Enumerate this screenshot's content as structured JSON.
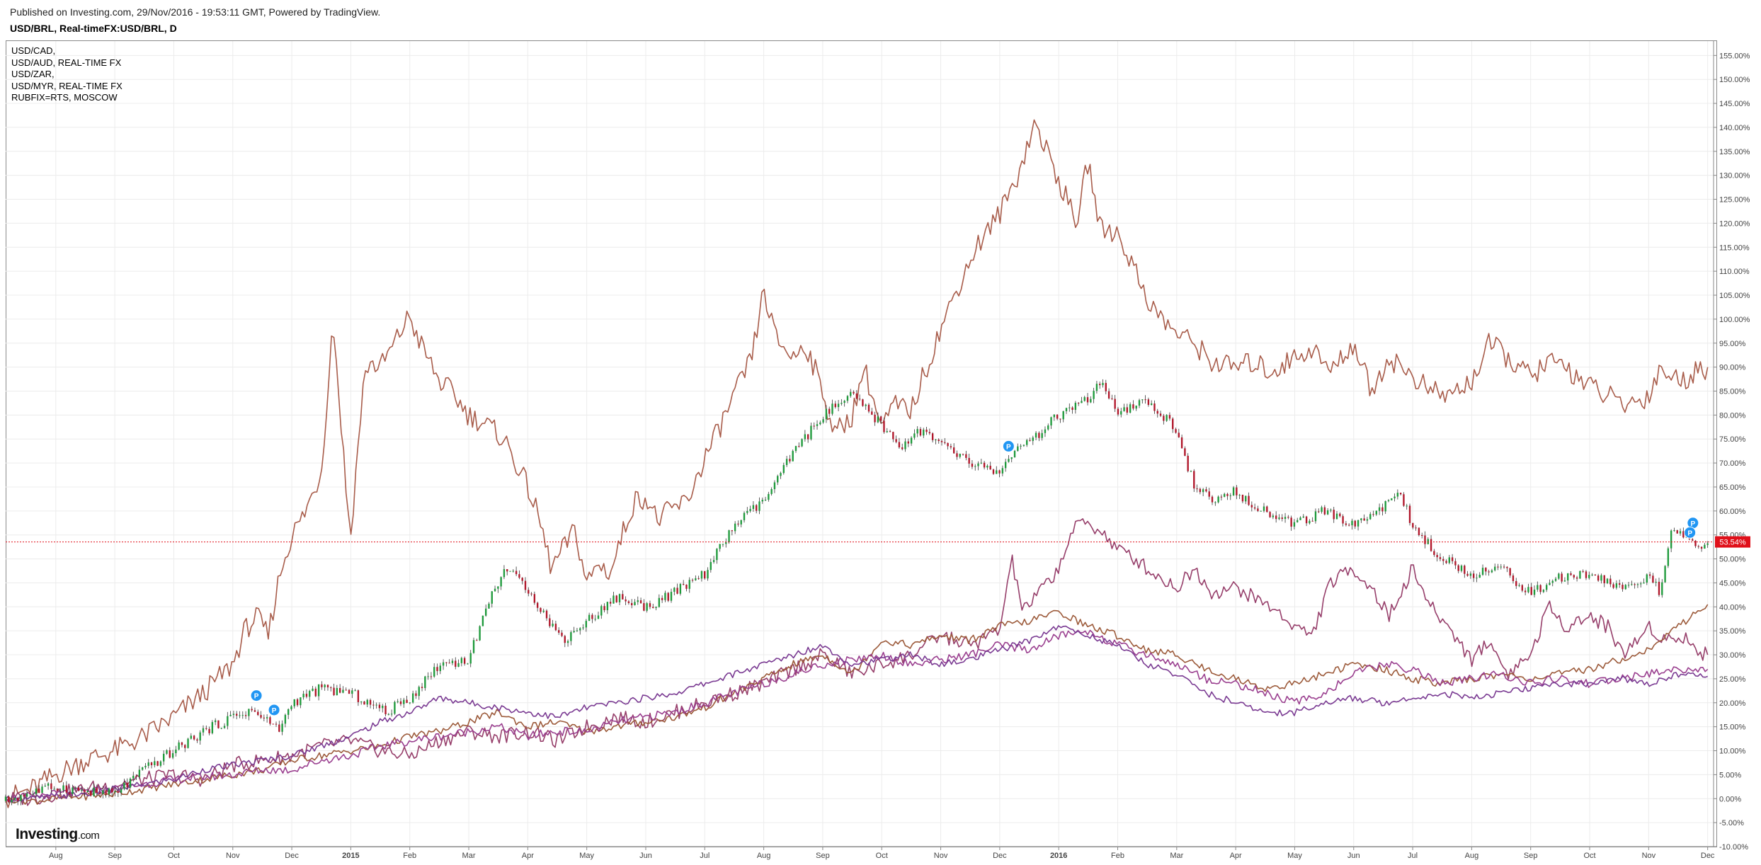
{
  "header": {
    "published": "Published on Investing.com, 29/Nov/2016 - 19:53:11 GMT, Powered by TradingView.",
    "symbol_title": "USD/BRL, Real-timeFX:USD/BRL, D"
  },
  "legend": [
    "USD/CAD,",
    "USD/AUD, REAL-TIME FX",
    "USD/ZAR,",
    "USD/MYR, REAL-TIME FX",
    "RUBFIX=RTS, MOSCOW"
  ],
  "logo": {
    "main": "Investing",
    "suffix": ".com"
  },
  "chart_data": {
    "type": "line",
    "title": "USD/BRL, Real-timeFX:USD/BRL, D",
    "y_unit": "%",
    "ylim": [
      -10,
      158
    ],
    "y_ticks": [
      155,
      150,
      145,
      140,
      135,
      130,
      125,
      120,
      115,
      110,
      105,
      100,
      95,
      90,
      85,
      80,
      75,
      70,
      65,
      60,
      55,
      50,
      45,
      40,
      35,
      30,
      25,
      20,
      15,
      10,
      5,
      0,
      -5,
      -10
    ],
    "y_tick_labels": [
      "155.00%",
      "150.00%",
      "145.00%",
      "140.00%",
      "135.00%",
      "130.00%",
      "125.00%",
      "120.00%",
      "115.00%",
      "110.00%",
      "105.00%",
      "100.00%",
      "95.00%",
      "90.00%",
      "85.00%",
      "80.00%",
      "75.00%",
      "70.00%",
      "65.00%",
      "60.00%",
      "55.00%",
      "50.00%",
      "45.00%",
      "40.00%",
      "35.00%",
      "30.00%",
      "25.00%",
      "20.00%",
      "15.00%",
      "10.00%",
      "5.00%",
      "0.00%",
      "-5.00%",
      "-10.00%"
    ],
    "x_tick_labels": [
      "Aug",
      "Sep",
      "Oct",
      "Nov",
      "Dec",
      "2015",
      "Feb",
      "Mar",
      "Apr",
      "May",
      "Jun",
      "Jul",
      "Aug",
      "Sep",
      "Oct",
      "Nov",
      "Dec",
      "2016",
      "Feb",
      "Mar",
      "Apr",
      "May",
      "Jun",
      "Jul",
      "Aug",
      "Sep",
      "Oct",
      "Nov",
      "Dec"
    ],
    "x_tick_months": [
      0,
      1,
      2,
      3,
      4,
      5,
      6,
      7,
      8,
      9,
      10,
      11,
      12,
      13,
      14,
      15,
      16,
      17,
      18,
      19,
      20,
      21,
      22,
      23,
      24,
      25,
      26,
      27,
      28
    ],
    "x_axis_note": "month index 0 = Aug 2014",
    "xlim": [
      -0.85,
      28.1
    ],
    "grid": true,
    "legend_position": "top-left",
    "last_value_label": "53.54%",
    "last_value": 53.54,
    "colors": {
      "candle_up": "#1f9a3c",
      "candle_down": "#b0162a",
      "rub": "#a85c4a",
      "zar": "#963e6a",
      "cad": "#9c5a3a",
      "aud": "#9a3f8f",
      "myr": "#7a3a92",
      "last_line": "#e0101a",
      "grid": "#ececec",
      "axis_text": "#444444"
    },
    "markers": [
      {
        "x": 3.4,
        "y": 21.5,
        "label": "P"
      },
      {
        "x": 3.7,
        "y": 18.5,
        "label": "P"
      },
      {
        "x": 16.15,
        "y": 73.5,
        "label": "P"
      },
      {
        "x": 27.75,
        "y": 57.5,
        "label": "P"
      },
      {
        "x": 27.7,
        "y": 55.5,
        "label": "P"
      }
    ],
    "series": [
      {
        "name": "USD/BRL",
        "style": "candles",
        "x": [
          -0.85,
          -0.5,
          0,
          0.5,
          1,
          1.5,
          2,
          2.5,
          3,
          3.3,
          3.6,
          3.8,
          4,
          4.5,
          5,
          5.3,
          5.6,
          6,
          6.5,
          7,
          7.3,
          7.6,
          8,
          8.3,
          8.6,
          9,
          9.5,
          10,
          10.5,
          11,
          11.5,
          12,
          12.5,
          13,
          13.5,
          14,
          14.3,
          14.6,
          15,
          15.5,
          16,
          16.2,
          16.5,
          17,
          17.5,
          17.7,
          18,
          18.5,
          19,
          19.3,
          19.6,
          20,
          20.5,
          21,
          21.5,
          22,
          22.5,
          22.8,
          23,
          23.2,
          23.5,
          24,
          24.5,
          25,
          25.5,
          26,
          26.5,
          27,
          27.2,
          27.4,
          27.6,
          27.8,
          28
        ],
        "values": [
          -0.5,
          1,
          2.5,
          1.5,
          1,
          6,
          10,
          14,
          17,
          18.5,
          16,
          14.5,
          20,
          23,
          22,
          20,
          18,
          21,
          28,
          29,
          40,
          48,
          44,
          38,
          33,
          37,
          42,
          40,
          43,
          47,
          57,
          62,
          72,
          80,
          84,
          78,
          73,
          77,
          74,
          70,
          68,
          72,
          74,
          80,
          83,
          87,
          80,
          83,
          77,
          65,
          62,
          64,
          60,
          57,
          60,
          57,
          61,
          64,
          56,
          54,
          50,
          47,
          48,
          43,
          46,
          47,
          44,
          46,
          43,
          56,
          55,
          52,
          53.54
        ]
      },
      {
        "name": "RUBFIX=RTS, MOSCOW",
        "style": "line",
        "x": [
          -0.85,
          -0.4,
          0,
          0.5,
          1,
          1.5,
          2,
          2.5,
          3,
          3.2,
          3.4,
          3.6,
          3.8,
          4,
          4.2,
          4.5,
          4.7,
          4.85,
          4.95,
          5,
          5.1,
          5.2,
          5.3,
          5.5,
          5.7,
          6,
          6.1,
          6.3,
          6.5,
          6.7,
          7,
          7.3,
          7.6,
          7.8,
          8,
          8.2,
          8.4,
          8.6,
          8.8,
          9,
          9.2,
          9.4,
          9.6,
          9.8,
          10,
          10.2,
          10.4,
          10.7,
          11,
          11.2,
          11.5,
          11.8,
          12,
          12.2,
          12.5,
          12.7,
          13,
          13.2,
          13.5,
          13.7,
          14,
          14.2,
          14.5,
          14.7,
          15,
          15.3,
          15.6,
          16,
          16.3,
          16.6,
          17,
          17.3,
          17.5,
          17.7,
          18,
          18.3,
          18.6,
          19,
          19.3,
          19.6,
          20,
          20.3,
          20.6,
          21,
          21.3,
          21.6,
          22,
          22.3,
          22.6,
          23,
          23.3,
          23.6,
          24,
          24.3,
          24.6,
          25,
          25.3,
          25.6,
          26,
          26.3,
          26.6,
          27,
          27.2,
          27.5,
          27.8,
          28
        ],
        "values": [
          0,
          2,
          5,
          8,
          10,
          13,
          17,
          22,
          28,
          35,
          38,
          34,
          47,
          55,
          59,
          68,
          100,
          76,
          60,
          55,
          70,
          85,
          91,
          90,
          94,
          101,
          97,
          92,
          87,
          85,
          80,
          78,
          75,
          70,
          65,
          58,
          48,
          52,
          56,
          45,
          49,
          47,
          55,
          62,
          63,
          58,
          60,
          62,
          71,
          76,
          84,
          92,
          106,
          96,
          92,
          95,
          85,
          76,
          80,
          90,
          77,
          82,
          81,
          88,
          98,
          107,
          115,
          122,
          130,
          141,
          129,
          120,
          133,
          119,
          118,
          110,
          102,
          97,
          95,
          91,
          90,
          91,
          89,
          92,
          94,
          89,
          95,
          85,
          92,
          88,
          85,
          84,
          87,
          95,
          92,
          88,
          91,
          90,
          86,
          84,
          82,
          84,
          90,
          87,
          89,
          90
        ]
      },
      {
        "name": "USD/ZAR,",
        "style": "line",
        "x": [
          -0.85,
          -0.4,
          0,
          0.5,
          1,
          1.5,
          2,
          2.5,
          3,
          3.5,
          4,
          4.5,
          5,
          5.5,
          6,
          6.5,
          7,
          7.5,
          8,
          8.5,
          9,
          9.5,
          10,
          10.5,
          11,
          11.5,
          12,
          12.5,
          13,
          13.5,
          14,
          14.5,
          15,
          15.5,
          16,
          16.2,
          16.4,
          16.6,
          17,
          17.2,
          17.4,
          17.7,
          18,
          18.3,
          18.6,
          19,
          19.3,
          19.6,
          20,
          20.3,
          20.6,
          21,
          21.3,
          21.6,
          22,
          22.3,
          22.6,
          23,
          23.3,
          23.6,
          24,
          24.3,
          24.6,
          25,
          25.3,
          25.6,
          26,
          26.3,
          26.6,
          27,
          27.3,
          27.6,
          27.8,
          28
        ],
        "values": [
          0,
          0,
          1,
          2,
          3,
          4,
          5,
          4,
          7,
          8,
          9,
          11,
          12,
          10,
          9,
          12,
          14,
          13,
          14,
          12,
          15,
          17,
          16,
          18,
          20,
          22,
          24,
          27,
          30,
          26,
          28,
          30,
          34,
          32,
          35,
          50,
          39,
          42,
          48,
          55,
          58,
          56,
          52,
          50,
          47,
          44,
          48,
          43,
          44,
          42,
          40,
          36,
          34,
          45,
          48,
          44,
          38,
          48,
          40,
          36,
          29,
          33,
          26,
          30,
          40,
          36,
          38,
          36,
          30,
          36,
          33,
          34,
          31,
          30
        ]
      },
      {
        "name": "USD/CAD,",
        "style": "line",
        "x": [
          -0.85,
          -0.4,
          0,
          0.5,
          1,
          1.5,
          2,
          2.5,
          3,
          3.5,
          4,
          4.5,
          5,
          5.5,
          6,
          6.5,
          7,
          7.5,
          8,
          8.5,
          9,
          9.5,
          10,
          10.5,
          11,
          11.5,
          12,
          12.5,
          13,
          13.5,
          14,
          14.5,
          15,
          15.5,
          16,
          16.5,
          17,
          17.5,
          18,
          18.5,
          19,
          19.5,
          20,
          20.5,
          21,
          21.5,
          22,
          22.5,
          23,
          23.5,
          24,
          24.5,
          25,
          25.5,
          26,
          26.5,
          27,
          27.5,
          28
        ],
        "values": [
          0,
          -0.5,
          0,
          0.5,
          1,
          2,
          3,
          4,
          5,
          6,
          8,
          9,
          10,
          11,
          13,
          14,
          16,
          18,
          15,
          16,
          14,
          15,
          16,
          17,
          19,
          22,
          25,
          28,
          30,
          26,
          33,
          32,
          34,
          33,
          36,
          37,
          39,
          36,
          34,
          31,
          30,
          27,
          25,
          23,
          24,
          26,
          28,
          27,
          25,
          24,
          25,
          26,
          25,
          26,
          27,
          29,
          31,
          36,
          40.5
        ]
      },
      {
        "name": "USD/AUD, REAL-TIME FX",
        "style": "line",
        "x": [
          -0.85,
          -0.4,
          0,
          0.5,
          1,
          1.5,
          2,
          2.5,
          3,
          3.5,
          4,
          4.5,
          5,
          5.5,
          6,
          6.5,
          7,
          7.5,
          8,
          8.5,
          9,
          9.5,
          10,
          10.5,
          11,
          11.5,
          12,
          12.5,
          13,
          13.5,
          14,
          14.5,
          15,
          15.5,
          16,
          16.5,
          17,
          17.5,
          18,
          18.5,
          19,
          19.5,
          20,
          20.5,
          21,
          21.5,
          22,
          22.5,
          23,
          23.5,
          24,
          24.5,
          25,
          25.5,
          26,
          26.5,
          27,
          27.5,
          28
        ],
        "values": [
          0,
          0.5,
          1,
          1.5,
          2,
          3,
          4,
          4.5,
          5,
          6,
          6,
          8,
          9,
          11,
          12,
          13,
          14,
          15,
          13,
          14,
          14,
          16,
          17,
          18,
          20,
          22,
          24,
          26,
          28,
          29,
          30,
          28,
          29,
          30,
          32,
          31,
          34,
          35,
          32,
          30,
          28,
          25,
          24,
          22,
          20,
          22,
          26,
          28,
          27,
          24,
          25,
          26,
          24,
          25,
          24,
          25,
          26,
          27,
          27
        ]
      },
      {
        "name": "USD/MYR, REAL-TIME FX",
        "style": "line",
        "x": [
          -0.85,
          -0.4,
          0,
          0.5,
          1,
          1.5,
          2,
          2.5,
          3,
          3.5,
          4,
          4.5,
          5,
          5.5,
          6,
          6.5,
          7,
          7.5,
          8,
          8.5,
          9,
          9.5,
          10,
          10.5,
          11,
          11.5,
          12,
          12.5,
          13,
          13.5,
          14,
          14.5,
          15,
          15.5,
          16,
          16.5,
          17,
          17.5,
          18,
          18.5,
          19,
          19.5,
          20,
          20.5,
          21,
          21.5,
          22,
          22.5,
          23,
          23.5,
          24,
          24.5,
          25,
          25.5,
          26,
          26.5,
          27,
          27.5,
          28
        ],
        "values": [
          0,
          0,
          0.5,
          1,
          2,
          3,
          4,
          6,
          7,
          8,
          9,
          11,
          13,
          16,
          18,
          21,
          20,
          19,
          18,
          17,
          19,
          20,
          21,
          22,
          24,
          26,
          28,
          30,
          32,
          28,
          29,
          30,
          28,
          29,
          31,
          33,
          36,
          34,
          32,
          28,
          26,
          22,
          20,
          18,
          18,
          20,
          21,
          20,
          21,
          22,
          21,
          22,
          23,
          24,
          24,
          25,
          24,
          26,
          25.5
        ]
      }
    ]
  }
}
